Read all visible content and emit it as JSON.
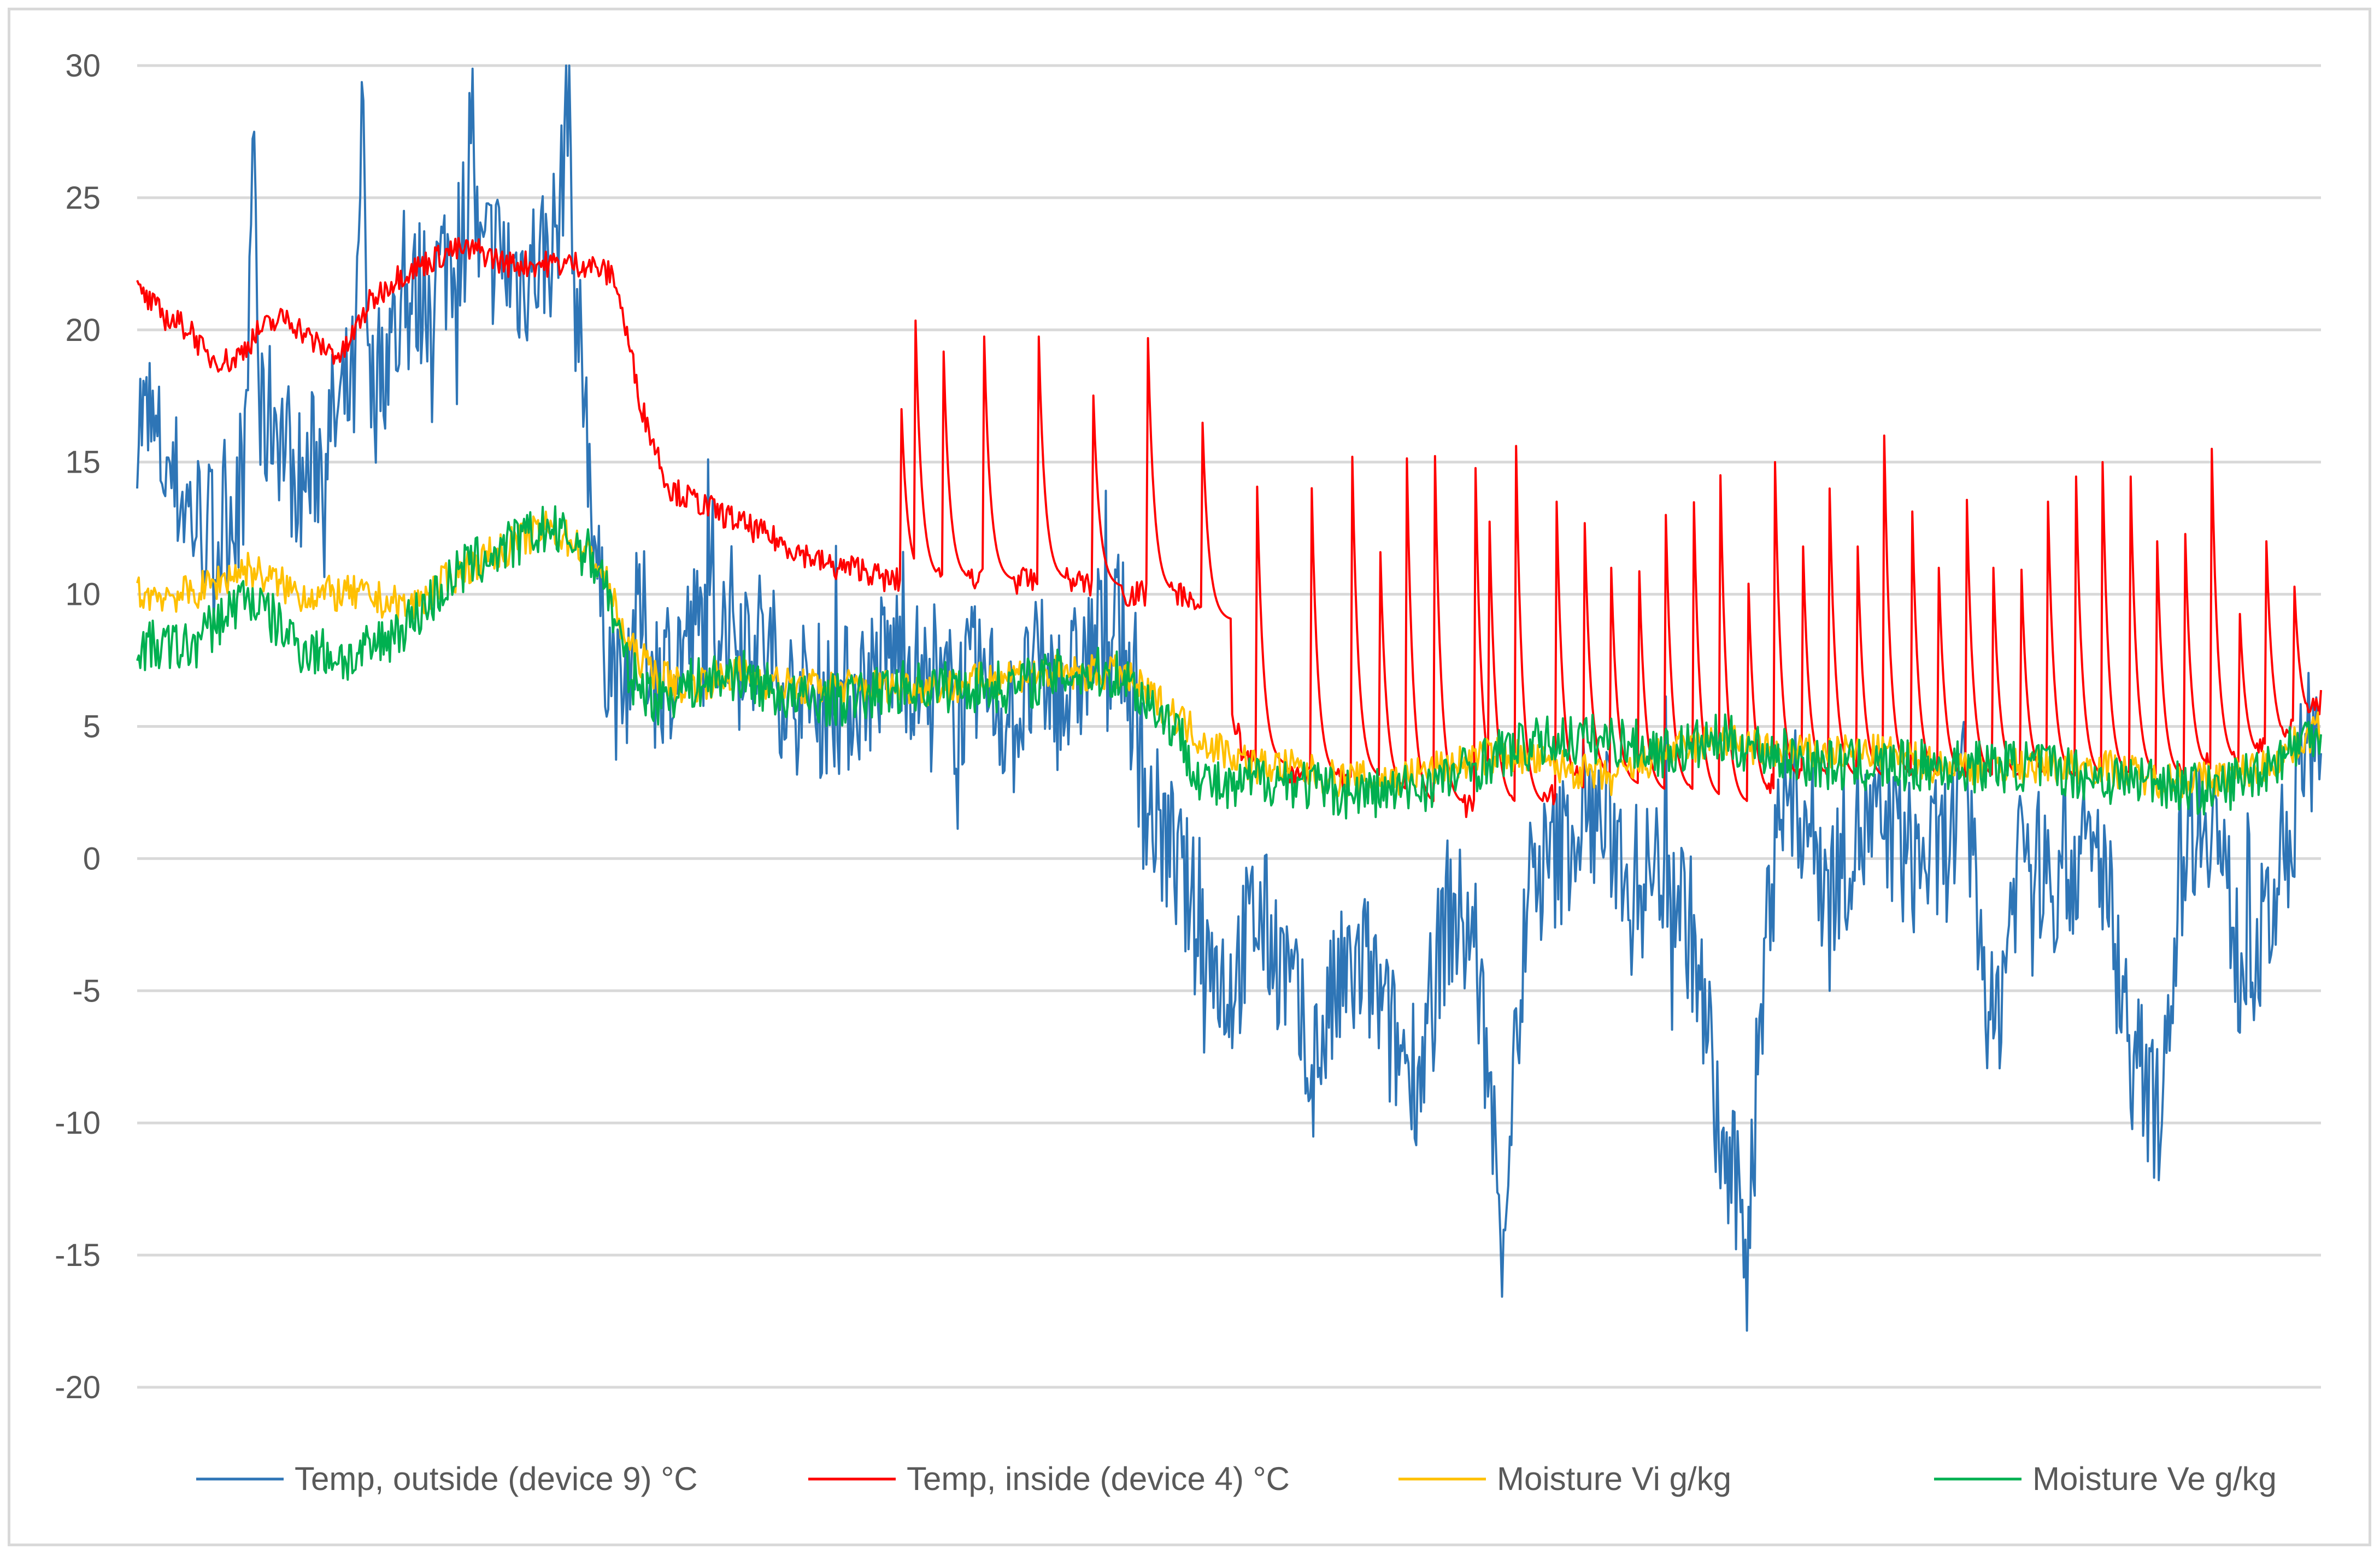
{
  "chart_data": {
    "type": "line",
    "title": "",
    "xlabel": "",
    "ylabel": "",
    "ylim": [
      -20,
      30
    ],
    "yticks": [
      30,
      25,
      20,
      15,
      10,
      5,
      0,
      -5,
      -10,
      -15,
      -20
    ],
    "ytick_labels": [
      "30",
      "25",
      "20",
      "15",
      "10",
      "5",
      "0",
      "-5",
      "-10",
      "-15",
      "-20"
    ],
    "x_domain": [
      0,
      160
    ],
    "grid": true,
    "legend_position": "bottom",
    "noise_seed": 7,
    "series": [
      {
        "name": "Temp, outside (device 9) °C",
        "color": "#2e75b6",
        "noise": 3.0,
        "spike": 2.0,
        "x": [
          0,
          2,
          4,
          6,
          8,
          8.5,
          9,
          10,
          12,
          14,
          16,
          16.5,
          17,
          18,
          20,
          22,
          24,
          24.5,
          25,
          26,
          28,
          30,
          31,
          31.5,
          32,
          33,
          34,
          35,
          35.5,
          36,
          37,
          38,
          40,
          42,
          44,
          46,
          48,
          50,
          52,
          54,
          56,
          58,
          60,
          62,
          64,
          66,
          68,
          70,
          72,
          74,
          76,
          78,
          80,
          82,
          84,
          86,
          88,
          90,
          92,
          94,
          96,
          98,
          100,
          102,
          104,
          106,
          108,
          110,
          112,
          114,
          116,
          118,
          120,
          122,
          124,
          126,
          128,
          130,
          132,
          134,
          136,
          138,
          140,
          142,
          144,
          146,
          148,
          150,
          152,
          154,
          156,
          158,
          160
        ],
        "y": [
          17,
          15,
          13,
          12,
          15,
          29,
          16,
          17,
          14,
          16,
          18,
          28,
          17,
          19,
          21,
          22,
          24,
          29,
          22,
          23,
          22,
          23,
          24,
          30,
          22,
          16,
          9,
          7,
          5,
          8,
          9,
          7,
          8,
          9,
          9,
          8,
          6,
          6,
          6,
          7,
          8,
          6,
          6,
          7,
          5,
          7,
          6,
          8,
          9,
          2,
          0,
          -3,
          -5,
          -2,
          -4,
          -8,
          -5,
          -4,
          -7,
          -8,
          -2,
          -3,
          -14,
          -1,
          0,
          2,
          1,
          -1,
          0,
          -3,
          -11,
          -14,
          2,
          2,
          -1,
          1,
          1,
          0,
          0,
          2,
          -7,
          1,
          -1,
          0,
          0,
          -7,
          -10,
          1,
          2,
          -4,
          -3,
          2,
          6
        ]
      },
      {
        "name": "Temp, inside (device 4) °C",
        "color": "#ff0000",
        "noise": 0.5,
        "spike": 0,
        "x": [
          0,
          2,
          4,
          5,
          7,
          9,
          11,
          13,
          15,
          17,
          19,
          21,
          23,
          25,
          27,
          29,
          31,
          33,
          35,
          37,
          39,
          41,
          43,
          45,
          47,
          49,
          51,
          53,
          55,
          57,
          59,
          61,
          63,
          65,
          67,
          69,
          71,
          73,
          75,
          77,
          79,
          81,
          83,
          85,
          87,
          89,
          91,
          93,
          95,
          97,
          99,
          101,
          103,
          105,
          107,
          109,
          111,
          113,
          115,
          117,
          119,
          121,
          123,
          125,
          127,
          129,
          131,
          133,
          135,
          137,
          139,
          141,
          143,
          145,
          147,
          149,
          151,
          153,
          155,
          157,
          160
        ],
        "y": [
          21.5,
          20.5,
          20,
          19,
          18.8,
          20,
          20.5,
          19.5,
          19,
          21,
          22,
          22.5,
          23,
          23,
          22.5,
          22.5,
          22.5,
          22.5,
          22,
          17,
          14,
          13.5,
          13,
          12.5,
          12,
          11.5,
          11,
          11,
          10.5,
          10.5,
          10.5,
          10.5,
          10.5,
          10.5,
          10.5,
          10.5,
          10,
          10,
          10,
          10,
          8,
          4,
          3,
          3,
          3,
          3,
          2.5,
          2,
          2,
          2,
          2,
          2,
          2,
          3,
          3,
          2.5,
          2.5,
          2.5,
          2,
          2,
          2.5,
          3,
          3,
          3,
          3,
          3,
          3,
          3,
          3,
          3,
          3,
          3,
          3,
          3,
          3,
          3,
          3.5,
          3.5,
          4,
          4.5,
          6
        ],
        "spikes": [
          [
            56,
            17
          ],
          [
            57,
            21
          ],
          [
            59,
            21
          ],
          [
            62,
            21
          ],
          [
            66,
            21
          ],
          [
            70,
            18.5
          ],
          [
            74,
            21
          ],
          [
            78,
            17.5
          ],
          [
            82,
            15.5
          ],
          [
            86,
            15.5
          ],
          [
            89,
            16
          ],
          [
            91,
            13.5
          ],
          [
            93,
            16
          ],
          [
            95,
            18
          ],
          [
            98,
            16.5
          ],
          [
            99,
            15
          ],
          [
            101,
            16.5
          ],
          [
            104,
            13.5
          ],
          [
            106,
            14
          ],
          [
            108,
            11
          ],
          [
            110,
            12
          ],
          [
            112,
            13
          ],
          [
            114,
            15
          ],
          [
            116,
            14.5
          ],
          [
            118,
            11.5
          ],
          [
            120,
            15
          ],
          [
            122,
            13
          ],
          [
            124,
            14
          ],
          [
            126,
            13
          ],
          [
            128,
            16
          ],
          [
            130,
            14.5
          ],
          [
            132,
            11
          ],
          [
            134,
            15
          ],
          [
            136,
            11
          ],
          [
            138,
            12
          ],
          [
            140,
            13.5
          ],
          [
            142,
            16
          ],
          [
            144,
            15
          ],
          [
            146,
            16
          ],
          [
            148,
            12
          ],
          [
            150,
            13.5
          ],
          [
            152,
            15.5
          ],
          [
            154,
            10
          ],
          [
            156,
            12
          ],
          [
            158,
            11
          ]
        ]
      },
      {
        "name": "Moisture Vi g/kg",
        "color": "#ffc000",
        "noise": 0.7,
        "spike": 0,
        "x": [
          0,
          4,
          8,
          12,
          16,
          20,
          24,
          28,
          30,
          32,
          34,
          36,
          38,
          40,
          44,
          48,
          52,
          56,
          60,
          64,
          68,
          72,
          76,
          78,
          80,
          82,
          84,
          88,
          92,
          96,
          100,
          104,
          108,
          112,
          116,
          120,
          124,
          128,
          132,
          136,
          140,
          144,
          148,
          152,
          156,
          160
        ],
        "y": [
          10,
          10,
          11,
          10,
          10,
          9.5,
          11,
          12,
          12.5,
          12,
          11,
          8,
          7,
          6.5,
          7,
          6.5,
          6.5,
          6.5,
          6.5,
          7,
          7,
          7,
          5.5,
          4.5,
          4,
          3.5,
          3.5,
          3,
          3,
          3.5,
          4,
          3.5,
          3,
          4,
          4.5,
          4,
          4,
          4,
          3.5,
          3.5,
          3.5,
          3.5,
          3,
          3,
          3.5,
          5
        ]
      },
      {
        "name": "Moisture Ve g/kg",
        "color": "#00b050",
        "noise": 1.0,
        "spike": 0,
        "x": [
          0,
          4,
          8,
          12,
          16,
          20,
          24,
          28,
          30,
          32,
          34,
          36,
          38,
          40,
          44,
          48,
          52,
          56,
          60,
          64,
          68,
          72,
          76,
          78,
          80,
          82,
          84,
          88,
          92,
          96,
          100,
          104,
          108,
          112,
          116,
          120,
          124,
          128,
          132,
          136,
          140,
          144,
          148,
          152,
          156,
          160
        ],
        "y": [
          8,
          8,
          10,
          8,
          7.5,
          9,
          11,
          12,
          12.5,
          12,
          11,
          7,
          6,
          6.5,
          7,
          6,
          6,
          6.5,
          6.5,
          6.5,
          7,
          7,
          5,
          3,
          2.5,
          3,
          3,
          2.5,
          2.5,
          3,
          4,
          4.5,
          4.5,
          4,
          4.5,
          4,
          3.5,
          3.5,
          3.5,
          3.5,
          3.5,
          3,
          3,
          2.5,
          3.5,
          5
        ]
      }
    ]
  }
}
